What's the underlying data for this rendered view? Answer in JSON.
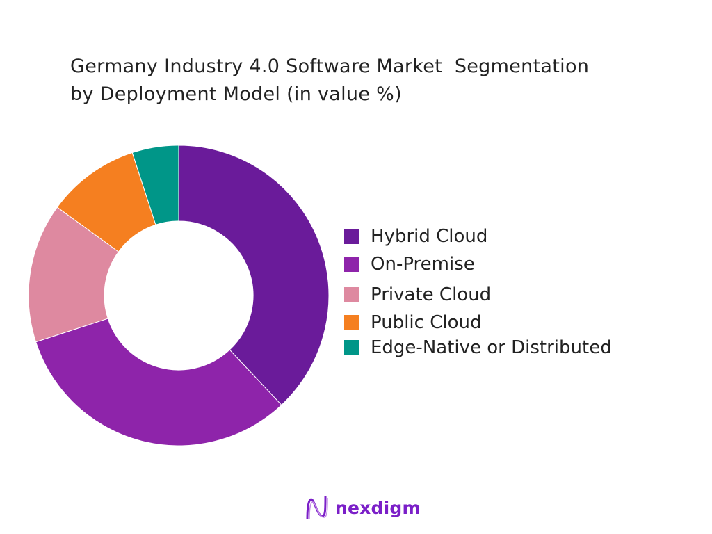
{
  "chart_data": {
    "type": "donut",
    "title_line1": "Germany Industry 4.0 Software Market  Segmentation",
    "title_line2": "by Deployment Model (in value %)",
    "unit": "%",
    "start_angle": "top, clockwise",
    "legend_position": "right",
    "slices": [
      {
        "label": "Hybrid Cloud",
        "value": 38,
        "color": "#6a1b9a"
      },
      {
        "label": "On-Premise",
        "value": 32,
        "color": "#8e24aa"
      },
      {
        "label": "Private Cloud",
        "value": 15,
        "color": "#de89a0"
      },
      {
        "label": "Public Cloud",
        "value": 10,
        "color": "#f57f20"
      },
      {
        "label": "Edge-Native or Distributed",
        "value": 5,
        "color": "#009688"
      }
    ]
  },
  "brand": {
    "name": "nexdigm",
    "color": "#7b1fc8"
  }
}
